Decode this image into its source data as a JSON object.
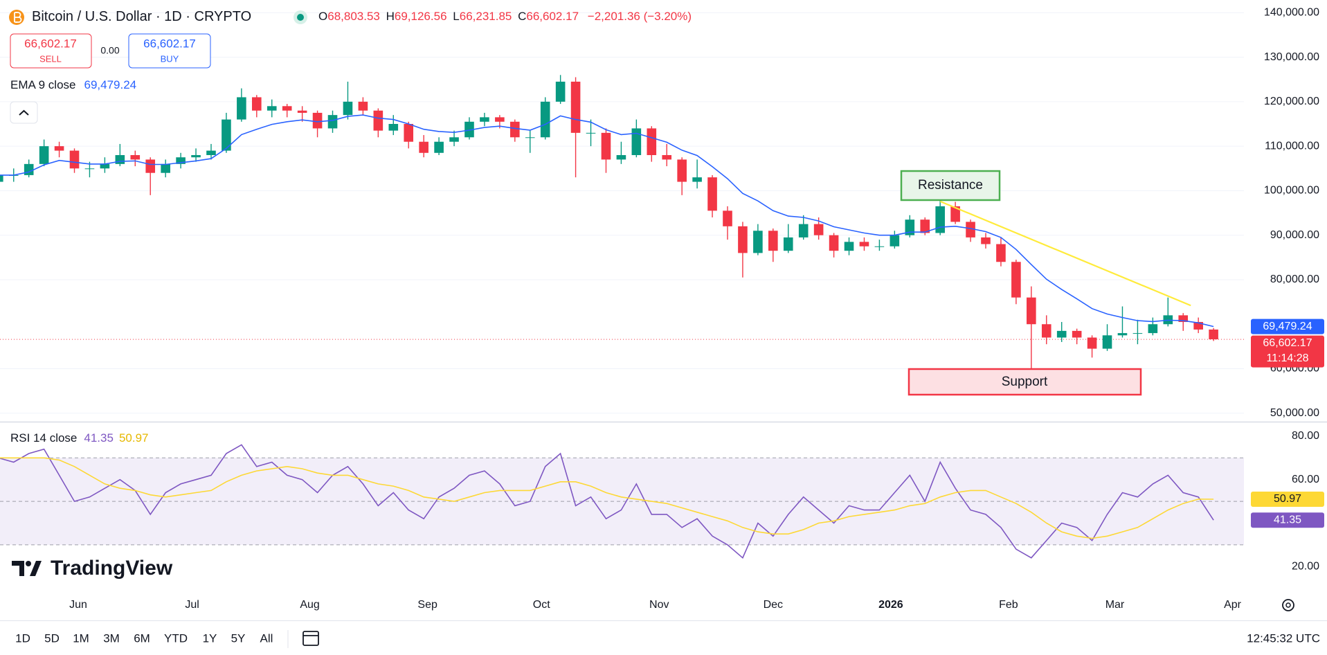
{
  "header": {
    "symbol": "Bitcoin / U.S. Dollar · 1D · CRYPTO",
    "ohlc_prefixes": [
      "O",
      "H",
      "L",
      "C"
    ],
    "change": "−2,201.36 (−3.20%)"
  },
  "trade": {
    "sell_price": "66,602.17",
    "sell": "SELL",
    "spread": "0.00",
    "buy_price": "66,602.17",
    "buy": "BUY"
  },
  "chart_data": [
    {
      "type": "candlestick",
      "up_color": "#089981",
      "down_color": "#f23645",
      "candles": [
        [
          102000,
          104500,
          101000,
          103500
        ],
        [
          103500,
          105000,
          102000,
          103500
        ],
        [
          103500,
          107000,
          103000,
          106000
        ],
        [
          106000,
          111500,
          105500,
          110000
        ],
        [
          110000,
          111000,
          107500,
          109000
        ],
        [
          109000,
          109500,
          104000,
          105000
        ],
        [
          105000,
          106500,
          103000,
          105000
        ],
        [
          105000,
          107500,
          104000,
          106000
        ],
        [
          106000,
          110500,
          105500,
          108000
        ],
        [
          108000,
          109000,
          105500,
          107000
        ],
        [
          107000,
          107500,
          99000,
          104000
        ],
        [
          104000,
          107000,
          103000,
          106000
        ],
        [
          106000,
          108500,
          105000,
          107500
        ],
        [
          107500,
          109500,
          106500,
          108000
        ],
        [
          108000,
          110500,
          107000,
          109000
        ],
        [
          109000,
          117500,
          108500,
          116000
        ],
        [
          116000,
          123000,
          115500,
          121000
        ],
        [
          121000,
          121500,
          116500,
          118000
        ],
        [
          118000,
          120500,
          116500,
          119000
        ],
        [
          119000,
          119500,
          116500,
          118000
        ],
        [
          118000,
          119000,
          115500,
          117500
        ],
        [
          117500,
          118000,
          112000,
          114000
        ],
        [
          114000,
          118000,
          113000,
          117000
        ],
        [
          117000,
          124500,
          116000,
          120000
        ],
        [
          120000,
          121000,
          117000,
          118000
        ],
        [
          118000,
          118500,
          112000,
          113500
        ],
        [
          113500,
          117000,
          112500,
          115000
        ],
        [
          115000,
          115500,
          109500,
          111000
        ],
        [
          111000,
          112500,
          107500,
          108500
        ],
        [
          108500,
          112000,
          108000,
          111000
        ],
        [
          111000,
          113500,
          110000,
          112000
        ],
        [
          112000,
          116500,
          111500,
          115500
        ],
        [
          115500,
          117500,
          114500,
          116500
        ],
        [
          116500,
          117000,
          114000,
          115500
        ],
        [
          115500,
          116000,
          111000,
          112000
        ],
        [
          112000,
          113500,
          108500,
          112000
        ],
        [
          112000,
          121000,
          111500,
          120000
        ],
        [
          120000,
          126000,
          119500,
          124500
        ],
        [
          124500,
          125500,
          103000,
          113000
        ],
        [
          113000,
          116000,
          110000,
          113000
        ],
        [
          113000,
          114000,
          104000,
          107000
        ],
        [
          107000,
          111000,
          106000,
          108000
        ],
        [
          108000,
          116000,
          107500,
          114000
        ],
        [
          114000,
          114500,
          106500,
          108000
        ],
        [
          108000,
          110500,
          105500,
          107000
        ],
        [
          107000,
          107500,
          99000,
          102000
        ],
        [
          102000,
          107000,
          100500,
          103000
        ],
        [
          103000,
          103500,
          94000,
          95500
        ],
        [
          95500,
          96500,
          89000,
          92000
        ],
        [
          92000,
          93000,
          80500,
          86000
        ],
        [
          86000,
          92500,
          85500,
          91000
        ],
        [
          91000,
          91500,
          84000,
          86500
        ],
        [
          86500,
          92500,
          86000,
          89500
        ],
        [
          89500,
          94500,
          89000,
          92500
        ],
        [
          92500,
          94000,
          89000,
          90000
        ],
        [
          90000,
          90500,
          85000,
          86500
        ],
        [
          86500,
          89500,
          85500,
          88500
        ],
        [
          88500,
          89500,
          86500,
          87500
        ],
        [
          87500,
          89000,
          86500,
          87500
        ],
        [
          87500,
          91000,
          87000,
          90000
        ],
        [
          90000,
          94500,
          89500,
          93500
        ],
        [
          93500,
          94000,
          90000,
          90500
        ],
        [
          90500,
          98000,
          90000,
          96500
        ],
        [
          96500,
          97500,
          92500,
          93000
        ],
        [
          93000,
          93500,
          88500,
          89500
        ],
        [
          89500,
          90500,
          87000,
          88000
        ],
        [
          88000,
          89500,
          83000,
          84000
        ],
        [
          84000,
          84500,
          74500,
          76000
        ],
        [
          76000,
          78500,
          60000,
          70000
        ],
        [
          70000,
          72000,
          65500,
          67000
        ],
        [
          67000,
          70500,
          66000,
          68500
        ],
        [
          68500,
          69000,
          65500,
          67000
        ],
        [
          67000,
          67500,
          62500,
          64500
        ],
        [
          64500,
          70000,
          64000,
          67500
        ],
        [
          67500,
          74000,
          67000,
          68000
        ],
        [
          68000,
          71000,
          65500,
          68000
        ],
        [
          68000,
          71500,
          67500,
          70000
        ],
        [
          70000,
          76000,
          69500,
          72000
        ],
        [
          72000,
          72500,
          68500,
          70500
        ],
        [
          70500,
          71500,
          68000,
          68803.53
        ],
        [
          68803.53,
          69126.56,
          66231.85,
          66602.17
        ]
      ],
      "last_candle_labels": [
        "68,803.53",
        "69,126.56",
        "66,231.85",
        "66,602.17"
      ],
      "countdown": "11:14:28",
      "series": [
        {
          "name": "EMA 9 close",
          "color": "#2962ff",
          "last_label": "69,479.24",
          "values": [
            103500,
            103500,
            104200,
            105800,
            106800,
            106400,
            106000,
            106000,
            106600,
            106700,
            105900,
            105900,
            106300,
            106700,
            107200,
            109500,
            112600,
            113800,
            114900,
            115500,
            115900,
            115500,
            115800,
            116700,
            117000,
            116300,
            116000,
            115000,
            113800,
            113300,
            113100,
            113600,
            114200,
            114500,
            114000,
            113600,
            114900,
            116800,
            116000,
            115400,
            113700,
            112600,
            112900,
            111900,
            110900,
            109100,
            107900,
            105400,
            102700,
            99400,
            97700,
            95500,
            94300,
            94000,
            93200,
            91900,
            91200,
            90500,
            90000,
            90000,
            90700,
            90700,
            91800,
            92000,
            91500,
            90800,
            89500,
            86800,
            83400,
            80100,
            77800,
            75700,
            73500,
            72300,
            71500,
            70800,
            70600,
            70900,
            70800,
            70300,
            69479.24
          ]
        }
      ],
      "trendline": {
        "color": "#ffeb3b",
        "x": [
          62,
          78.5
        ],
        "y": [
          97600,
          74200
        ]
      },
      "annotations": [
        "Resistance",
        "Support"
      ],
      "xlim": [
        0.1,
        82
      ],
      "xticks": [
        {
          "value": 5.25,
          "label": "Jun"
        },
        {
          "value": 12.75,
          "label": "Jul"
        },
        {
          "value": 20.5,
          "label": "Aug"
        },
        {
          "value": 28.25,
          "label": "Sep"
        },
        {
          "value": 35.75,
          "label": "Oct"
        },
        {
          "value": 43.5,
          "label": "Nov"
        },
        {
          "value": 51,
          "label": "Dec"
        },
        {
          "value": 58.75,
          "label": "2026"
        },
        {
          "value": 66.5,
          "label": "Feb"
        },
        {
          "value": 73.5,
          "label": "Mar"
        },
        {
          "value": 81.25,
          "label": "Apr"
        }
      ],
      "ylim": [
        48100,
        142850
      ],
      "yticks": [
        {
          "value": 50000,
          "label": "50,000.00"
        },
        {
          "value": 60000,
          "label": "60,000.00"
        },
        {
          "value": 80000,
          "label": "80,000.00"
        },
        {
          "value": 90000,
          "label": "90,000.00"
        },
        {
          "value": 100000,
          "label": "100,000.00"
        },
        {
          "value": 110000,
          "label": "110,000.00"
        },
        {
          "value": 120000,
          "label": "120,000.00"
        },
        {
          "value": 130000,
          "label": "130,000.00"
        },
        {
          "value": 140000,
          "label": "140,000.00"
        }
      ],
      "grid": true
    },
    {
      "type": "line",
      "legend": "RSI 14 close",
      "band_lines": [
        70,
        50,
        30
      ],
      "band_color": "#7e57c2",
      "series": [
        {
          "color": "#7e57c2",
          "last_label": "41.35",
          "values": [
            70,
            68,
            72,
            74,
            62,
            50,
            52,
            56,
            60,
            55,
            44,
            54,
            58,
            60,
            62,
            72,
            76,
            66,
            68,
            62,
            60,
            54,
            62,
            66,
            58,
            48,
            54,
            46,
            42,
            52,
            56,
            62,
            64,
            58,
            48,
            50,
            66,
            72,
            48,
            52,
            42,
            46,
            58,
            44,
            44,
            38,
            42,
            34,
            30,
            24,
            40,
            34,
            44,
            52,
            46,
            40,
            48,
            46,
            46,
            54,
            62,
            50,
            68,
            56,
            46,
            44,
            38,
            28,
            24,
            32,
            40,
            38,
            32,
            44,
            54,
            52,
            58,
            62,
            54,
            52,
            41.35
          ]
        },
        {
          "color": "#fdd835",
          "last_label": "50.97",
          "values": [
            70,
            70,
            70,
            70,
            69,
            66,
            62,
            58,
            56,
            55,
            53,
            52,
            53,
            54,
            55,
            59,
            62,
            64,
            65,
            66,
            65,
            63,
            62,
            62,
            60,
            58,
            57,
            55,
            52,
            51,
            50,
            52,
            54,
            55,
            55,
            55,
            57,
            59,
            59,
            57,
            54,
            52,
            51,
            50,
            49,
            47,
            45,
            43,
            41,
            38,
            36,
            35,
            35,
            37,
            40,
            41,
            43,
            44,
            45,
            46,
            48,
            49,
            52,
            54,
            55,
            55,
            52,
            49,
            45,
            40,
            36,
            34,
            33,
            34,
            36,
            38,
            42,
            46,
            49,
            51,
            50.97
          ]
        }
      ],
      "ylim": [
        8,
        86
      ],
      "yticks": [
        {
          "value": 20,
          "label": "20.00"
        },
        {
          "value": 60,
          "label": "60.00"
        },
        {
          "value": 80,
          "label": "80.00"
        }
      ]
    }
  ],
  "timeframes": [
    "1D",
    "5D",
    "1M",
    "3M",
    "6M",
    "YTD",
    "1Y",
    "5Y",
    "All"
  ],
  "clock": "12:45:32 UTC",
  "logo": "TradingView"
}
